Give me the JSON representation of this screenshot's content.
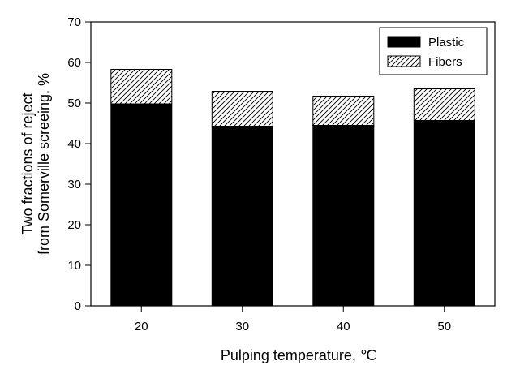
{
  "chart_data": {
    "type": "bar",
    "stacked": true,
    "categories": [
      "20",
      "30",
      "40",
      "50"
    ],
    "series": [
      {
        "name": "Plastic",
        "values": [
          49.8,
          44.3,
          44.5,
          45.7
        ],
        "color": "#000000",
        "pattern": "solid"
      },
      {
        "name": "Fibers",
        "values": [
          8.5,
          8.6,
          7.2,
          7.8
        ],
        "color": "#ffffff",
        "pattern": "diagonal-hatch"
      }
    ],
    "xlabel": "Pulping temperature, ℃",
    "ylabel_lines": [
      "Two fractions of reject",
      "from Somerville screeing, %"
    ],
    "ylim": [
      0,
      70
    ],
    "yticks": [
      "0",
      "10",
      "20",
      "30",
      "40",
      "50",
      "60",
      "70"
    ],
    "grid": false,
    "legend_position": "top-right"
  }
}
